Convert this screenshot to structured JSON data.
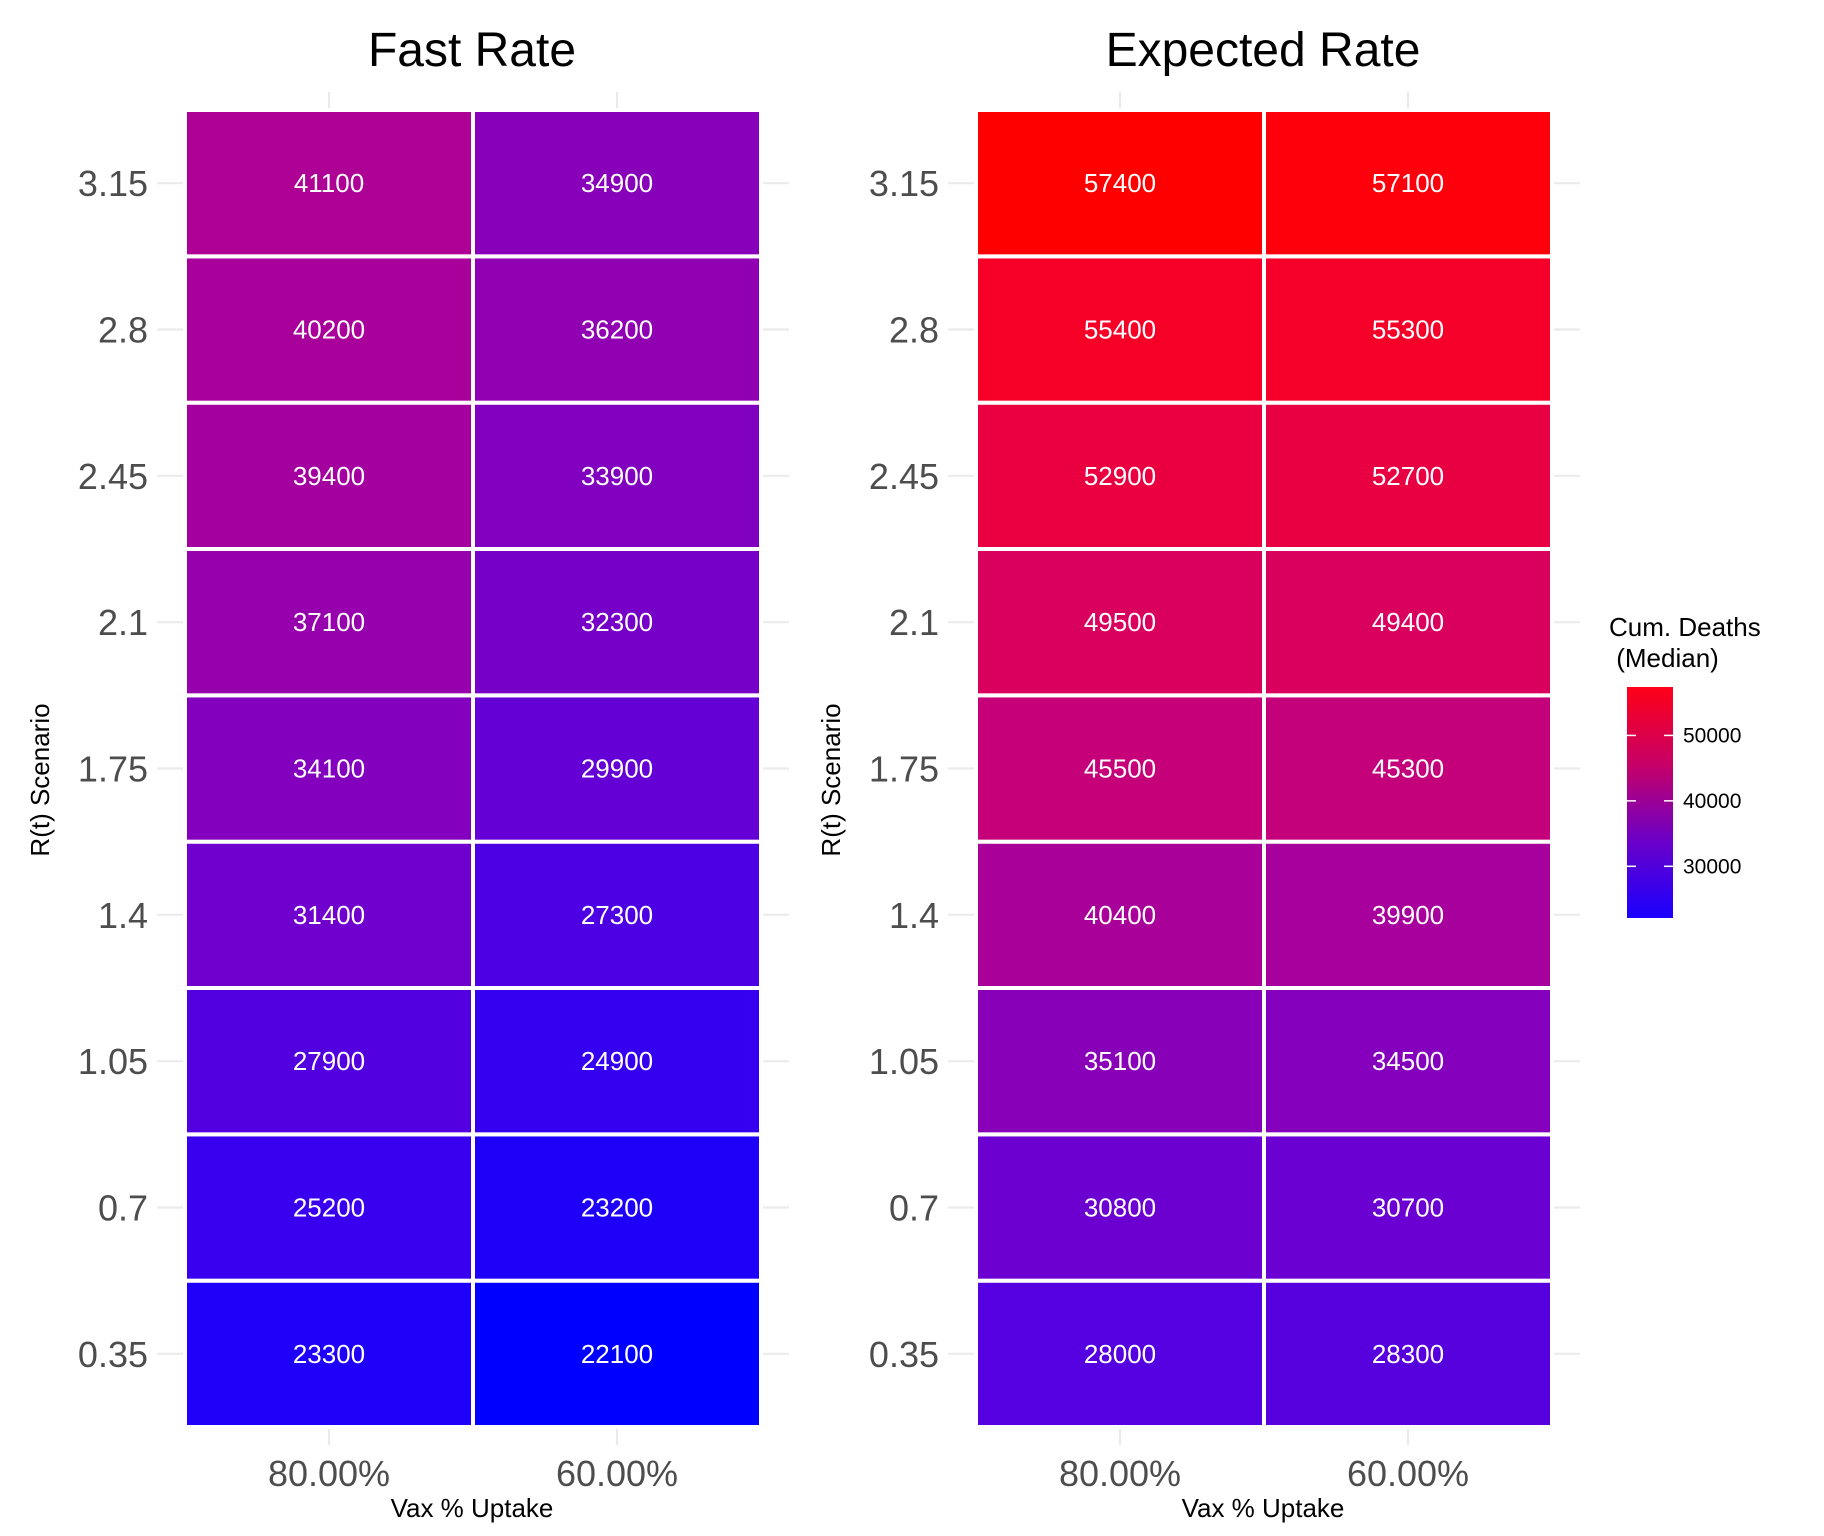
{
  "chart_data": [
    {
      "type": "heatmap",
      "title": "Fast Rate",
      "xlabel": "Vax % Uptake",
      "ylabel": "R(t) Scenario",
      "x_categories": [
        "80.00%",
        "60.00%"
      ],
      "y_categories": [
        "0.35",
        "0.7",
        "1.05",
        "1.4",
        "1.75",
        "2.1",
        "2.45",
        "2.8",
        "3.15"
      ],
      "values": [
        [
          23300,
          22100
        ],
        [
          25200,
          23200
        ],
        [
          27900,
          24900
        ],
        [
          31400,
          27300
        ],
        [
          34100,
          29900
        ],
        [
          37100,
          32300
        ],
        [
          39400,
          33900
        ],
        [
          40200,
          36200
        ],
        [
          41100,
          34900
        ]
      ]
    },
    {
      "type": "heatmap",
      "title": "Expected Rate",
      "xlabel": "Vax % Uptake",
      "ylabel": "R(t) Scenario",
      "x_categories": [
        "80.00%",
        "60.00%"
      ],
      "y_categories": [
        "0.35",
        "0.7",
        "1.05",
        "1.4",
        "1.75",
        "2.1",
        "2.45",
        "2.8",
        "3.15"
      ],
      "values": [
        [
          28000,
          28300
        ],
        [
          30800,
          30700
        ],
        [
          35100,
          34500
        ],
        [
          40400,
          39900
        ],
        [
          45500,
          45300
        ],
        [
          49500,
          49400
        ],
        [
          52900,
          52700
        ],
        [
          55400,
          55300
        ],
        [
          57400,
          57100
        ]
      ]
    }
  ],
  "legend": {
    "title_line1": "Cum. Deaths",
    "title_line2": " (Median)",
    "ticks": [
      "30000",
      "40000",
      "50000"
    ],
    "tick_values": [
      30000,
      40000,
      50000
    ],
    "min": 22100,
    "max": 57400,
    "low_color": "#0000ff",
    "high_color": "#ff0000",
    "cell_text_color": "#ffffff",
    "gridline_color": "#ebebeb",
    "tile_border_color": "#ffffff"
  }
}
